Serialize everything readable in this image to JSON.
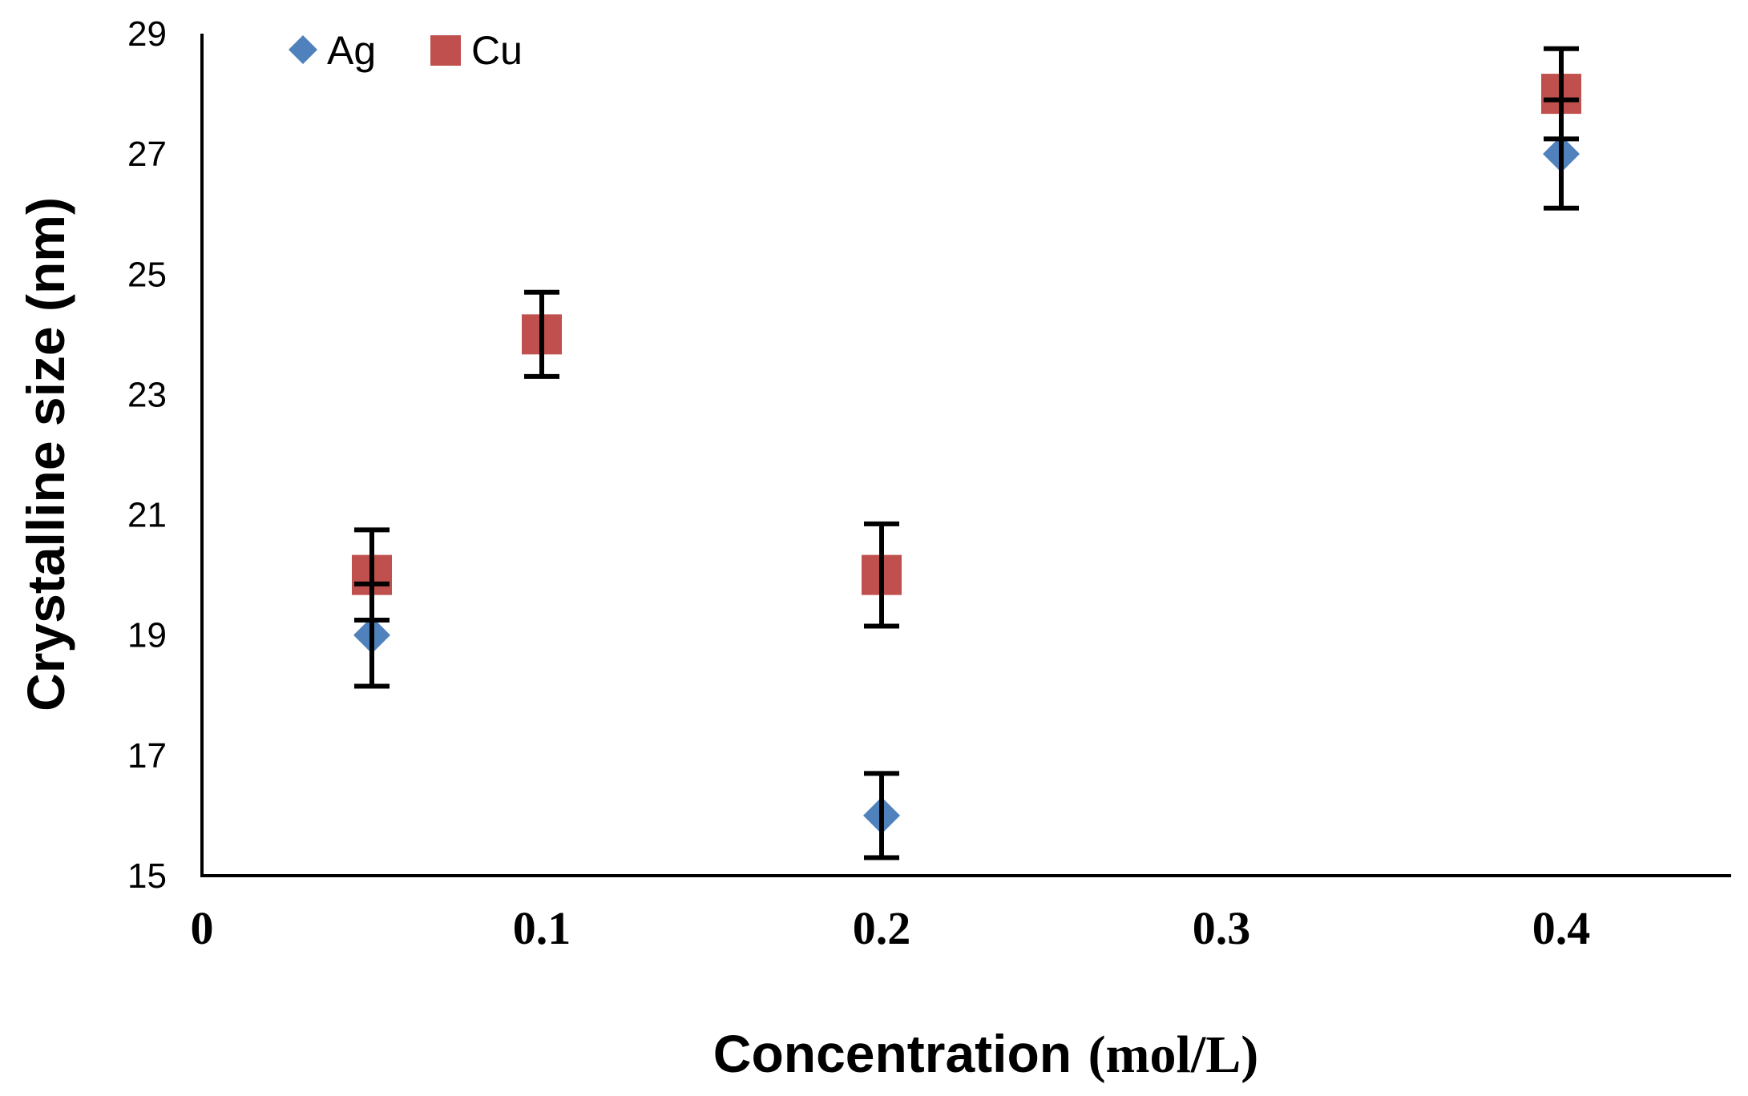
{
  "chart_data": {
    "type": "scatter",
    "title": "",
    "xlabel_main": "Concentration",
    "xlabel_unit": "(mol/L)",
    "ylabel": "Crystalline size (nm)",
    "xlim": [
      0,
      0.45
    ],
    "ylim": [
      15,
      29
    ],
    "xticks": [
      "0",
      "0.1",
      "0.2",
      "0.3",
      "0.4"
    ],
    "xtick_values": [
      0,
      0.1,
      0.2,
      0.3,
      0.4
    ],
    "yticks": [
      "15",
      "17",
      "19",
      "21",
      "23",
      "25",
      "27",
      "29"
    ],
    "ytick_values": [
      15,
      17,
      19,
      21,
      23,
      25,
      27,
      29
    ],
    "grid": false,
    "legend_position": "top-left",
    "series": [
      {
        "name": "Ag",
        "marker": "diamond",
        "color": "#4F81BD",
        "points": [
          {
            "x": 0.05,
            "y": 19,
            "err": 0.85
          },
          {
            "x": 0.2,
            "y": 16,
            "err": 0.7
          },
          {
            "x": 0.4,
            "y": 27,
            "err": 0.9
          }
        ]
      },
      {
        "name": "Cu",
        "marker": "square",
        "color": "#C0504D",
        "points": [
          {
            "x": 0.05,
            "y": 20,
            "err": 0.75
          },
          {
            "x": 0.1,
            "y": 24,
            "err": 0.7
          },
          {
            "x": 0.2,
            "y": 20,
            "err": 0.85
          },
          {
            "x": 0.4,
            "y": 28,
            "err": 0.75
          }
        ]
      }
    ]
  }
}
